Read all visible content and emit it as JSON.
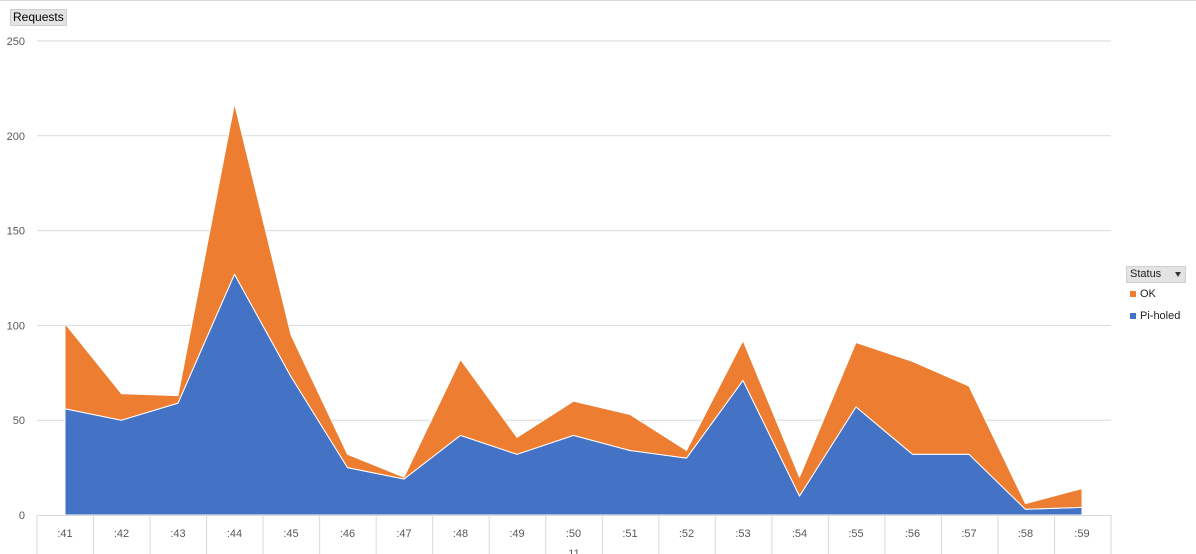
{
  "field_buttons": {
    "values_label": "Requests",
    "legend_label": "Status"
  },
  "colors": {
    "ok": "#ED7D31",
    "piholed": "#4472C4",
    "grid": "#d9d9d9",
    "axis_text": "#595959"
  },
  "chart_data": {
    "type": "area",
    "stacked": true,
    "categories": [
      ":41",
      ":42",
      ":43",
      ":44",
      ":45",
      ":46",
      ":47",
      ":48",
      ":49",
      ":50",
      ":51",
      ":52",
      ":53",
      ":54",
      ":55",
      ":56",
      ":57",
      ":58",
      ":59"
    ],
    "x_group_label": "11",
    "series": [
      {
        "name": "Pi-holed",
        "values": [
          56,
          50,
          59,
          127,
          73,
          25,
          19,
          42,
          32,
          42,
          34,
          30,
          71,
          10,
          57,
          32,
          32,
          3,
          4
        ]
      },
      {
        "name": "OK",
        "values": [
          45,
          14,
          4,
          90,
          22,
          7,
          1,
          40,
          9,
          18,
          19,
          4,
          21,
          10,
          34,
          49,
          36,
          3,
          10
        ]
      }
    ],
    "yticks": [
      "0",
      "50",
      "100",
      "150",
      "200",
      "250"
    ],
    "ylim": [
      0,
      250
    ],
    "grid": true,
    "legend": {
      "title": "Status",
      "placement": "right",
      "entries": [
        "OK",
        "Pi-holed"
      ]
    }
  }
}
